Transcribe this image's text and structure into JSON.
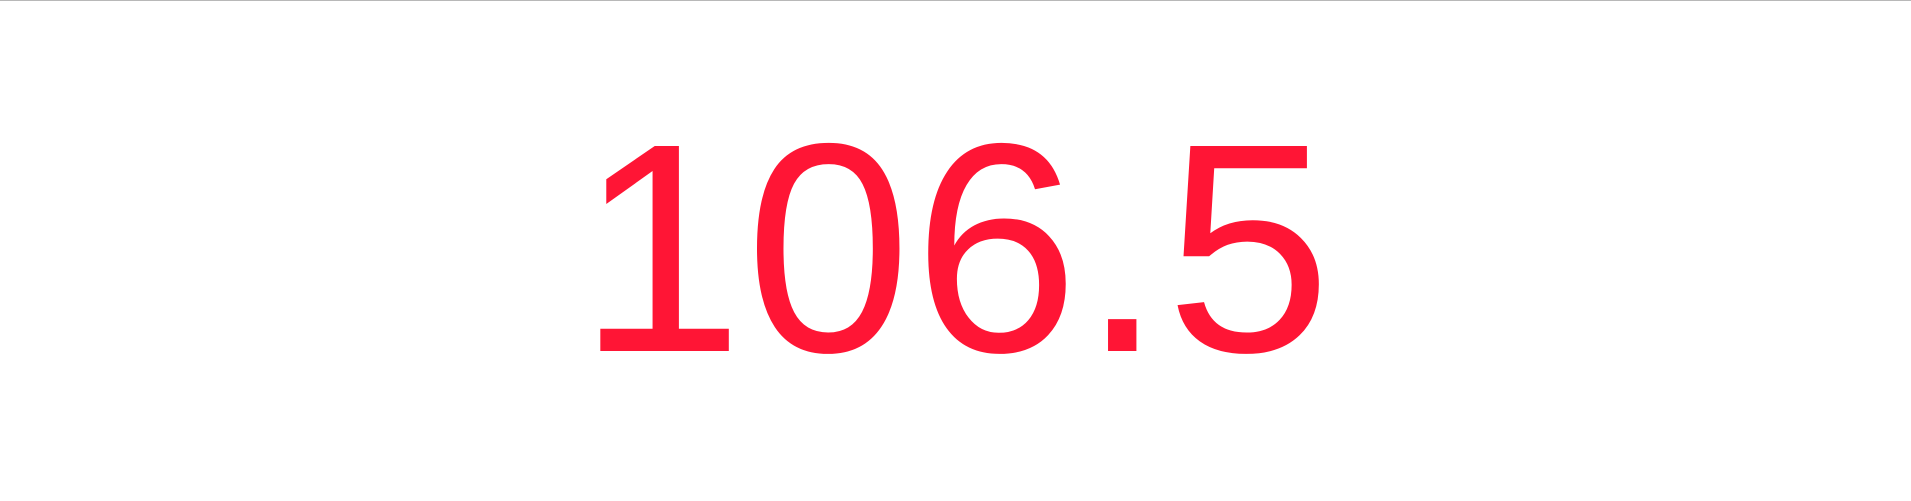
{
  "display": {
    "value": "106.5",
    "color": "#ff1535"
  }
}
